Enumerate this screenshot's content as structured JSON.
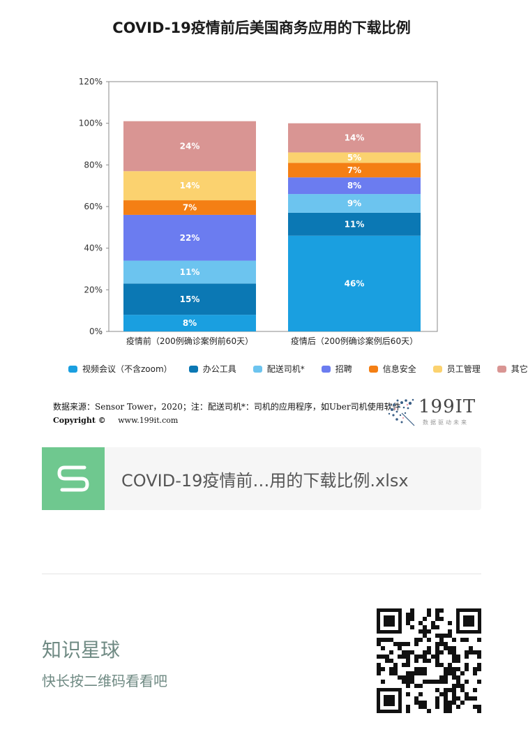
{
  "chart_data": {
    "type": "bar",
    "stacked": true,
    "title": "COVID-19疫情前后美国商务应用的下载比例",
    "categories": [
      "疫情前（200例确诊案例前60天）",
      "疫情后（200例确诊案例后60天）"
    ],
    "series": [
      {
        "name": "视频会议（不含zoom）",
        "color": "#1a9fe0",
        "values": [
          8,
          46
        ]
      },
      {
        "name": "办公工具",
        "color": "#0b78b4",
        "values": [
          15,
          11
        ]
      },
      {
        "name": "配送司机*",
        "color": "#6cc4ef",
        "values": [
          11,
          9
        ]
      },
      {
        "name": "招聘",
        "color": "#6b7cf0",
        "values": [
          22,
          8
        ]
      },
      {
        "name": "信息安全",
        "color": "#f47f14",
        "values": [
          7,
          7
        ]
      },
      {
        "name": "员工管理",
        "color": "#fbd26f",
        "values": [
          14,
          5
        ]
      },
      {
        "name": "其它",
        "color": "#d99593",
        "values": [
          24,
          14
        ]
      }
    ],
    "ylim": [
      0,
      120
    ],
    "yticks": [
      0,
      20,
      40,
      60,
      80,
      100,
      120
    ],
    "ytick_labels": [
      "0%",
      "20%",
      "40%",
      "60%",
      "80%",
      "100%",
      "120%"
    ],
    "grid": false,
    "legend_position": "bottom"
  },
  "footer": {
    "source": "数据来源：Sensor Tower，2020；注：配送司机*：司机的应用程序，如Uber司机使用软件",
    "copyright_label": "Copyright ©",
    "copyright_url": "www.199it.com",
    "logo_text": "199IT",
    "logo_sub": "数据驱动未来"
  },
  "file_card": {
    "icon": "spreadsheet-s-icon",
    "icon_color": "#6fc88f",
    "name": "COVID-19疫情前…用的下载比例.xlsx"
  },
  "planet": {
    "title": "知识星球",
    "subtitle": "快长按二维码看看吧",
    "qr_icon": "qr-code-icon"
  }
}
